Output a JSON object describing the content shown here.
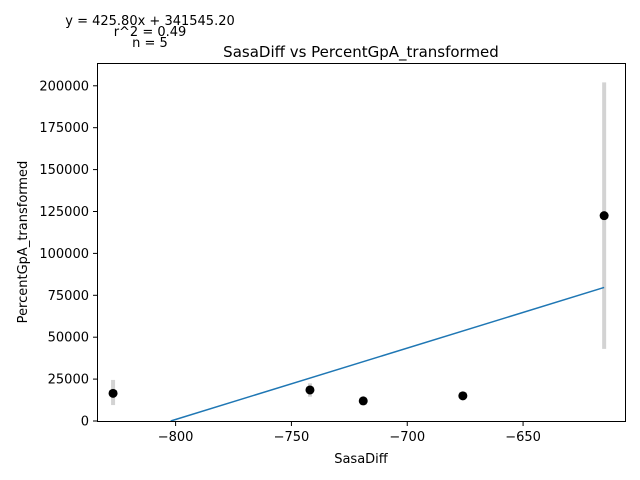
{
  "chart_data": {
    "type": "scatter",
    "title": "SasaDiff vs PercentGpA_transformed",
    "xlabel": "SasaDiff",
    "ylabel": "PercentGpA_transformed",
    "xlim": [
      -833.5,
      -606
    ],
    "ylim": [
      0,
      213000
    ],
    "x_ticks": [
      -800,
      -750,
      -700,
      -650
    ],
    "y_ticks": [
      0,
      25000,
      50000,
      75000,
      100000,
      125000,
      150000,
      175000,
      200000
    ],
    "grid": false,
    "annotations": [
      "y = 425.80x + 341545.20",
      "r^2 = 0.49",
      "n = 5"
    ],
    "points": [
      {
        "x": -827,
        "y": 16500,
        "err_low": 9500,
        "err_high": 24500
      },
      {
        "x": -742,
        "y": 18500,
        "err_low": 14500,
        "err_high": 22500
      },
      {
        "x": -719,
        "y": 12000,
        "err_low": 11000,
        "err_high": 13000
      },
      {
        "x": -676,
        "y": 15000,
        "err_low": 14000,
        "err_high": 16000
      },
      {
        "x": -615,
        "y": 122500,
        "err_low": 43000,
        "err_high": 202000
      }
    ],
    "fit_line": {
      "slope": 425.8,
      "intercept": 341545.2,
      "x_range": [
        -827,
        -615
      ]
    },
    "colors": {
      "points": "#000000",
      "errorbars": "#d3d3d3",
      "fit": "#1f77b4"
    }
  }
}
